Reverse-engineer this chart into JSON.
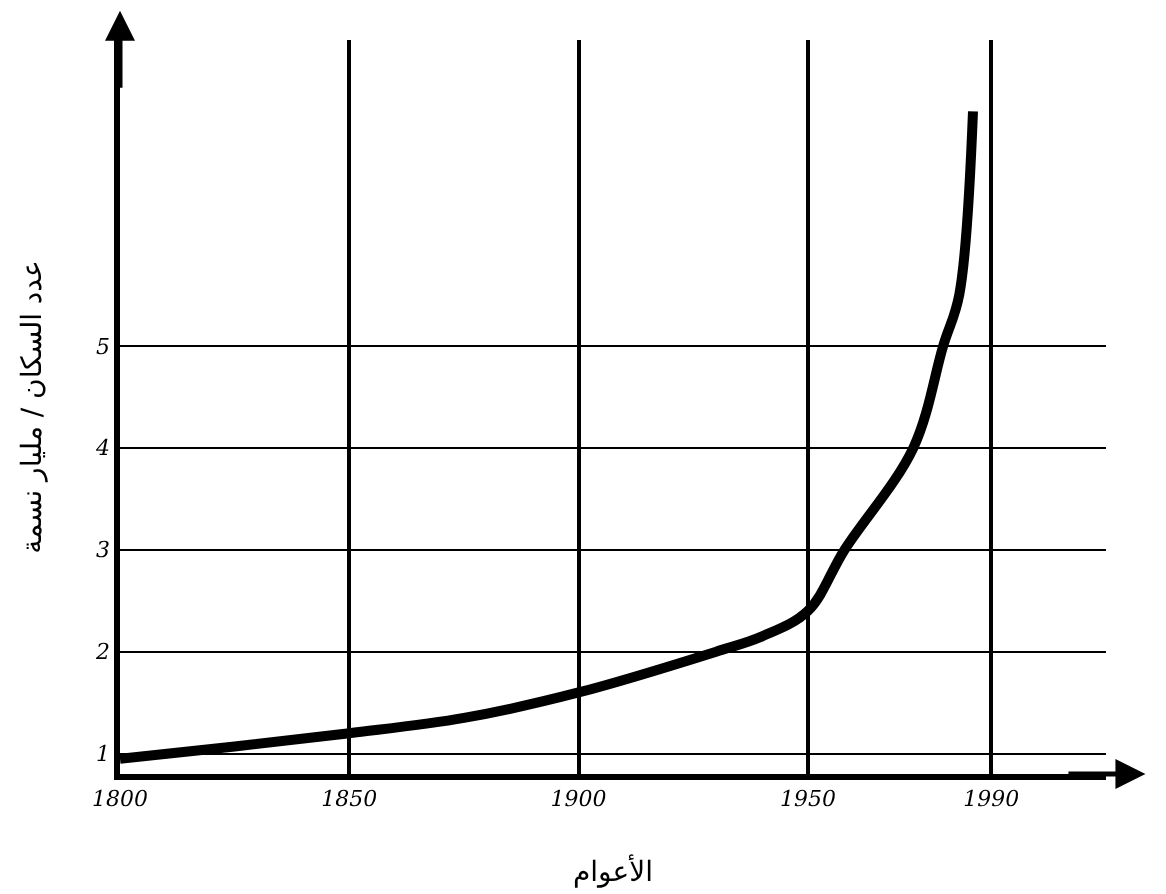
{
  "chart_data": {
    "type": "line",
    "xlabel": "الأعوام",
    "ylabel": "عدد السكان / مليار نسمة",
    "x": [
      1800,
      1825,
      1850,
      1875,
      1900,
      1930,
      1940,
      1950,
      1958,
      1973,
      1979.5,
      1983,
      1986
    ],
    "series": [
      {
        "color": "#000000",
        "values": [
          0.95,
          1.07,
          1.2,
          1.35,
          1.6,
          2.0,
          2.15,
          2.4,
          3.0,
          4.0,
          5.0,
          5.5,
          7.3
        ]
      }
    ],
    "xlim": [
      1800,
      2015
    ],
    "xticks": [
      1800,
      1850,
      1900,
      1950,
      1990
    ],
    "ylim": [
      0.8,
      8
    ],
    "yticks": [
      1,
      2,
      3,
      4,
      5
    ],
    "grid": true,
    "marker": "none",
    "line_style": "solid"
  }
}
